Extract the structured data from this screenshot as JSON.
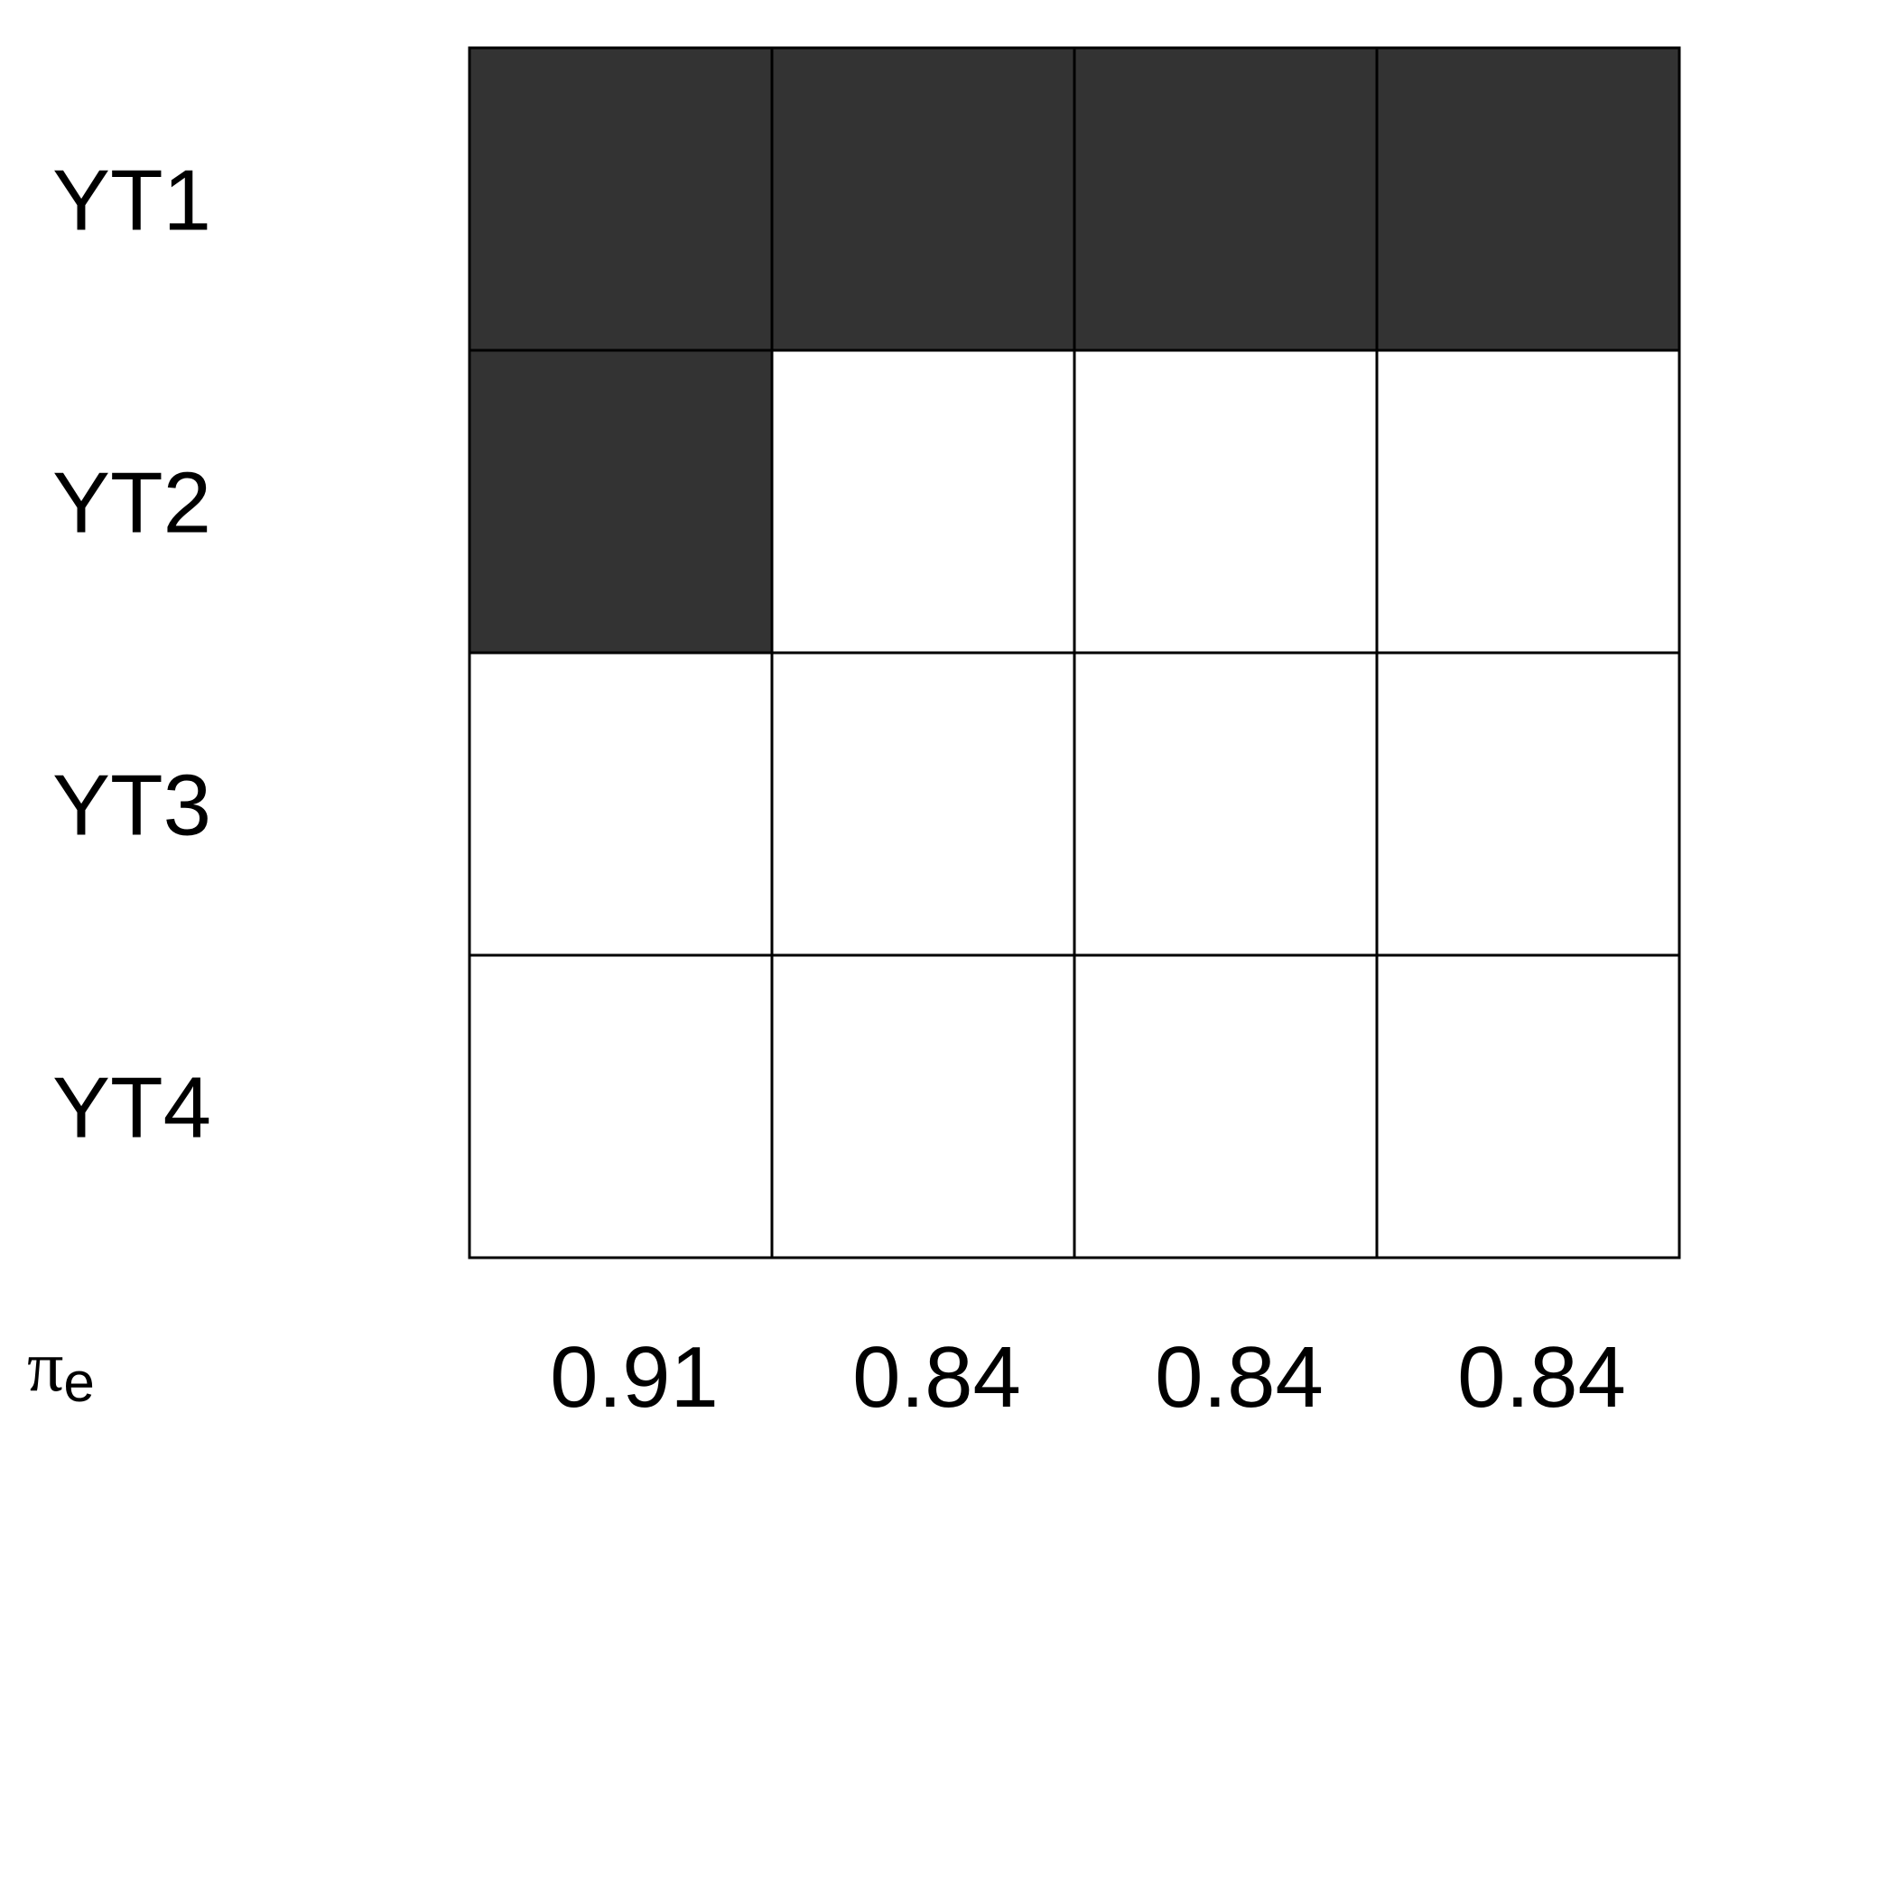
{
  "chart_data": {
    "type": "heatmap",
    "rows": [
      "YT1",
      "YT2",
      "YT3",
      "YT4"
    ],
    "column_values": [
      "0.91",
      "0.84",
      "0.84",
      "0.84"
    ],
    "column_label_symbol": "π",
    "column_label_subscript": "e",
    "matrix": [
      [
        1,
        1,
        1,
        1
      ],
      [
        1,
        0,
        0,
        0
      ],
      [
        0,
        0,
        0,
        0
      ],
      [
        0,
        0,
        0,
        0
      ]
    ],
    "filled_color": "#333333",
    "empty_color": "#ffffff"
  }
}
